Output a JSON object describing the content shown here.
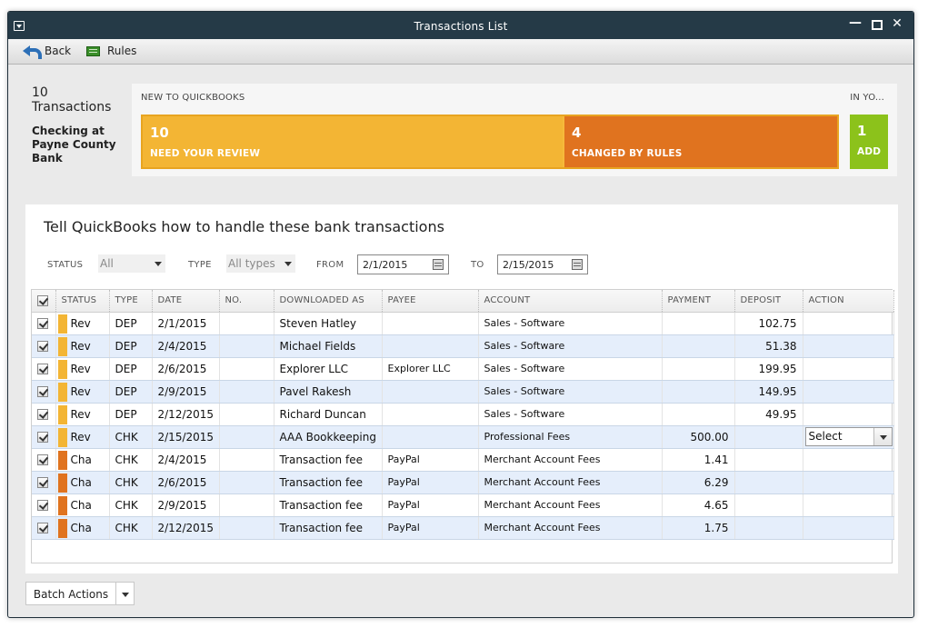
{
  "window": {
    "title": "Transactions List"
  },
  "toolbar": {
    "back_label": "Back",
    "rules_label": "Rules"
  },
  "summary": {
    "count_line1": "10",
    "count_line2": "Transactions",
    "account": "Checking at Payne County Bank",
    "new_label": "NEW TO QUICKBOOKS",
    "inyo_label": "IN YO...",
    "review": {
      "count": "10",
      "label": "NEED YOUR REVIEW",
      "color": "#f3b534"
    },
    "changed": {
      "count": "4",
      "label": "CHANGED BY RULES",
      "color": "#e0731f"
    },
    "add": {
      "count": "1",
      "label": "ADD",
      "color": "#8cc21b"
    }
  },
  "main": {
    "heading": "Tell QuickBooks how to handle these bank transactions"
  },
  "filters": {
    "status_label": "STATUS",
    "status_value": "All",
    "type_label": "TYPE",
    "type_value": "All types",
    "from_label": "FROM",
    "from_value": "2/1/2015",
    "to_label": "TO",
    "to_value": "2/15/2015"
  },
  "columns": {
    "status": "STATUS",
    "type": "TYPE",
    "date": "DATE",
    "no": "NO.",
    "downloaded": "DOWNLOADED AS",
    "payee": "PAYEE",
    "account": "ACCOUNT",
    "payment": "PAYMENT",
    "deposit": "DEPOSIT",
    "action": "ACTION"
  },
  "status_colors": {
    "Rev": "#f3b534",
    "Cha": "#e0731f"
  },
  "rows": [
    {
      "status": "Rev",
      "type": "DEP",
      "date": "2/1/2015",
      "no": "",
      "downloaded": "Steven Hatley",
      "payee": "",
      "account": "Sales - Software",
      "payment": "",
      "deposit": "102.75",
      "action": ""
    },
    {
      "status": "Rev",
      "type": "DEP",
      "date": "2/4/2015",
      "no": "",
      "downloaded": "Michael Fields",
      "payee": "",
      "account": "Sales - Software",
      "payment": "",
      "deposit": "51.38",
      "action": ""
    },
    {
      "status": "Rev",
      "type": "DEP",
      "date": "2/6/2015",
      "no": "",
      "downloaded": "Explorer LLC",
      "payee": "Explorer LLC",
      "account": "Sales - Software",
      "payment": "",
      "deposit": "199.95",
      "action": ""
    },
    {
      "status": "Rev",
      "type": "DEP",
      "date": "2/9/2015",
      "no": "",
      "downloaded": "Pavel Rakesh",
      "payee": "",
      "account": "Sales - Software",
      "payment": "",
      "deposit": "149.95",
      "action": ""
    },
    {
      "status": "Rev",
      "type": "DEP",
      "date": "2/12/2015",
      "no": "",
      "downloaded": "Richard Duncan",
      "payee": "",
      "account": "Sales - Software",
      "payment": "",
      "deposit": "49.95",
      "action": ""
    },
    {
      "status": "Rev",
      "type": "CHK",
      "date": "2/15/2015",
      "no": "",
      "downloaded": "AAA Bookkeeping",
      "payee": "",
      "account": "Professional Fees",
      "payment": "500.00",
      "deposit": "",
      "action": "Select"
    },
    {
      "status": "Cha",
      "type": "CHK",
      "date": "2/4/2015",
      "no": "",
      "downloaded": "Transaction fee",
      "payee": "PayPal",
      "account": "Merchant Account Fees",
      "payment": "1.41",
      "deposit": "",
      "action": ""
    },
    {
      "status": "Cha",
      "type": "CHK",
      "date": "2/6/2015",
      "no": "",
      "downloaded": "Transaction fee",
      "payee": "PayPal",
      "account": "Merchant Account Fees",
      "payment": "6.29",
      "deposit": "",
      "action": ""
    },
    {
      "status": "Cha",
      "type": "CHK",
      "date": "2/9/2015",
      "no": "",
      "downloaded": "Transaction fee",
      "payee": "PayPal",
      "account": "Merchant Account Fees",
      "payment": "4.65",
      "deposit": "",
      "action": ""
    },
    {
      "status": "Cha",
      "type": "CHK",
      "date": "2/12/2015",
      "no": "",
      "downloaded": "Transaction fee",
      "payee": "PayPal",
      "account": "Merchant Account Fees",
      "payment": "1.75",
      "deposit": "",
      "action": ""
    }
  ],
  "batch": {
    "label": "Batch Actions"
  }
}
